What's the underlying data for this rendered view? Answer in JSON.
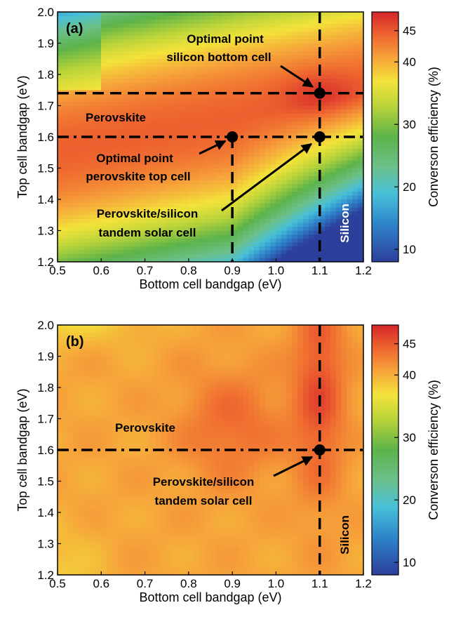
{
  "chart_data": [
    {
      "type": "heatmap",
      "panel_label": "(a)",
      "xlabel": "Bottom cell bandgap (eV)",
      "ylabel": "Top cell bandgap (eV)",
      "xlim": [
        0.5,
        1.2
      ],
      "ylim": [
        1.2,
        2.0
      ],
      "xticks": [
        "0.5",
        "0.6",
        "0.7",
        "0.8",
        "0.9",
        "1.0",
        "1.1",
        "1.2"
      ],
      "yticks": [
        "1.2",
        "1.3",
        "1.4",
        "1.5",
        "1.6",
        "1.7",
        "1.8",
        "1.9",
        "2.0"
      ],
      "colorbar": {
        "label": "Converson efficiency (%)",
        "range": [
          8,
          48
        ],
        "ticks": [
          "10",
          "20",
          "30",
          "40",
          "45"
        ]
      },
      "reference_lines": [
        {
          "orientation": "horizontal",
          "value": 1.74,
          "style": "dashed"
        },
        {
          "orientation": "horizontal",
          "value": 1.6,
          "style": "dash-dot"
        },
        {
          "orientation": "vertical",
          "value": 1.1,
          "style": "dashed"
        },
        {
          "orientation": "vertical",
          "value": 0.9,
          "style": "dashed"
        }
      ],
      "points": [
        {
          "x": 1.1,
          "y": 1.74
        },
        {
          "x": 0.9,
          "y": 1.6
        },
        {
          "x": 1.1,
          "y": 1.6
        }
      ],
      "annotations": {
        "optimal_silicon_l1": "Optimal point",
        "optimal_silicon_l2": "silicon bottom cell",
        "perovskite": "Perovskite",
        "optimal_perov_l1": "Optimal point",
        "optimal_perov_l2": "perovskite top cell",
        "tandem_l1": "Perovskite/silicon",
        "tandem_l2": "tandem solar cell",
        "silicon": "Silicon"
      }
    },
    {
      "type": "heatmap",
      "panel_label": "(b)",
      "xlabel": "Bottom cell bandgap (eV)",
      "ylabel": "Top cell bandgap (eV)",
      "xlim": [
        0.5,
        1.2
      ],
      "ylim": [
        1.2,
        2.0
      ],
      "xticks": [
        "0.5",
        "0.6",
        "0.7",
        "0.8",
        "0.9",
        "1.0",
        "1.1",
        "1.2"
      ],
      "yticks": [
        "1.2",
        "1.3",
        "1.4",
        "1.5",
        "1.6",
        "1.7",
        "1.8",
        "1.9",
        "2.0"
      ],
      "colorbar": {
        "label": "Converson efficiency (%)",
        "range": [
          8,
          48
        ],
        "ticks": [
          "10",
          "20",
          "30",
          "40",
          "45"
        ]
      },
      "reference_lines": [
        {
          "orientation": "horizontal",
          "value": 1.6,
          "style": "dash-dot"
        },
        {
          "orientation": "vertical",
          "value": 1.1,
          "style": "dashed"
        }
      ],
      "points": [
        {
          "x": 1.1,
          "y": 1.6
        }
      ],
      "annotations": {
        "perovskite": "Perovskite",
        "tandem_l1": "Perovskite/silicon",
        "tandem_l2": "tandem solar cell",
        "silicon": "Silicon"
      }
    }
  ]
}
